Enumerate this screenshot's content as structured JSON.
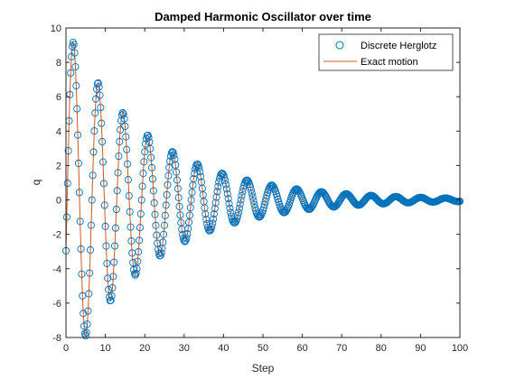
{
  "chart_data": {
    "type": "line",
    "title": "Damped Harmonic Oscillator over time",
    "xlabel": "Step",
    "ylabel": "q",
    "xlim": [
      0,
      100
    ],
    "ylim": [
      -8,
      10
    ],
    "xticks": [
      0,
      10,
      20,
      30,
      40,
      50,
      60,
      70,
      80,
      90,
      100
    ],
    "yticks": [
      -8,
      -6,
      -4,
      -2,
      0,
      2,
      4,
      6,
      8,
      10
    ],
    "grid": false,
    "legend_position": "top-right",
    "model": {
      "amplitude": 10,
      "decay_rate": 0.047,
      "period": 6.3,
      "phase": -0.3,
      "step_size": 0.2
    },
    "series": [
      {
        "name": "Discrete Herglotz",
        "style": "circle-markers",
        "color": "#0072BD"
      },
      {
        "name": "Exact motion",
        "style": "line",
        "color": "#D95319"
      }
    ]
  }
}
